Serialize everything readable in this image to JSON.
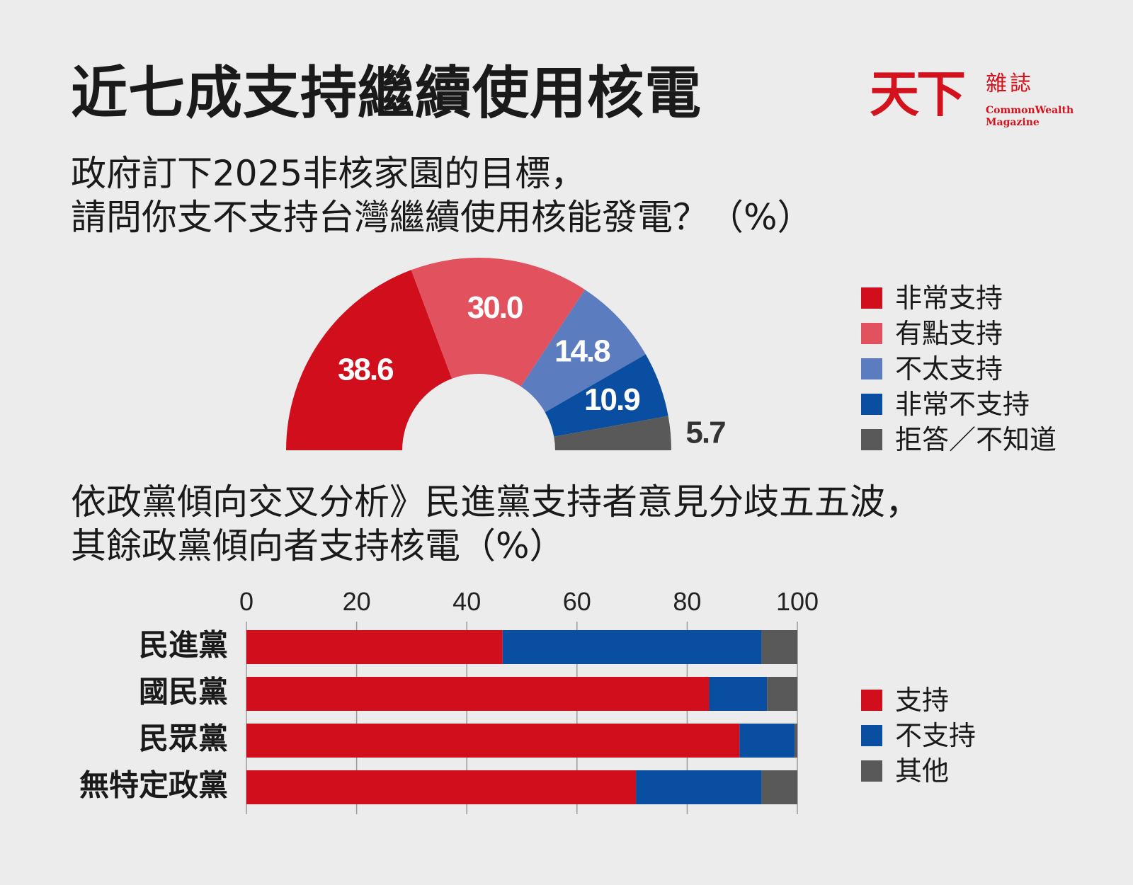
{
  "title": "近七成支持繼續使用核電",
  "logo": {
    "name_cn_large": "天下",
    "name_cn_small": "雜誌",
    "name_en_1": "CommonWealth",
    "name_en_2": "Magazine"
  },
  "colors": {
    "very_support": "#d10f1c",
    "somewhat_support": "#e2525e",
    "somewhat_not": "#5c7cc0",
    "very_not": "#0a4ea2",
    "refuse": "#595959",
    "background": "#ececec"
  },
  "chart1": {
    "question_line1": "政府訂下2025非核家園的目標，",
    "question_line2": "請問你支不支持台灣繼續使用核能發電？（%）"
  },
  "chart2": {
    "question_line1": "依政黨傾向交叉分析》民進黨支持者意見分歧五五波，",
    "question_line2": "其餘政黨傾向者支持核電（%）"
  },
  "chart_data": [
    {
      "type": "pie",
      "style": "half-donut",
      "title": "政府訂下2025非核家園的目標，請問你支不支持台灣繼續使用核能發電？（%）",
      "categories": [
        "非常支持",
        "有點支持",
        "不太支持",
        "非常不支持",
        "拒答／不知道"
      ],
      "values": [
        38.6,
        30.0,
        14.8,
        10.9,
        5.7
      ],
      "labels": [
        "38.6",
        "30.0",
        "14.8",
        "10.9",
        "5.7"
      ],
      "colors": [
        "#d10f1c",
        "#e2525e",
        "#5c7cc0",
        "#0a4ea2",
        "#595959"
      ],
      "legend": "right"
    },
    {
      "type": "bar",
      "orientation": "horizontal",
      "stacked": true,
      "title": "依政黨傾向交叉分析》民進黨支持者意見分歧五五波，其餘政黨傾向者支持核電（%）",
      "categories": [
        "民進黨",
        "國民黨",
        "民眾黨",
        "無特定政黨"
      ],
      "series": [
        {
          "name": "支持",
          "values": [
            46.5,
            84,
            89.5,
            70.7
          ],
          "color": "#d10f1c"
        },
        {
          "name": "不支持",
          "values": [
            47,
            10.5,
            10,
            22.8
          ],
          "color": "#0a4ea2"
        },
        {
          "name": "其他",
          "values": [
            6.5,
            5.5,
            0.5,
            6.5
          ],
          "color": "#595959"
        }
      ],
      "xlim": [
        0,
        100
      ],
      "xticks": [
        0,
        20,
        40,
        60,
        80,
        100
      ],
      "tick_labels": [
        "0",
        "20",
        "40",
        "60",
        "80",
        "100"
      ],
      "legend": "right"
    }
  ]
}
